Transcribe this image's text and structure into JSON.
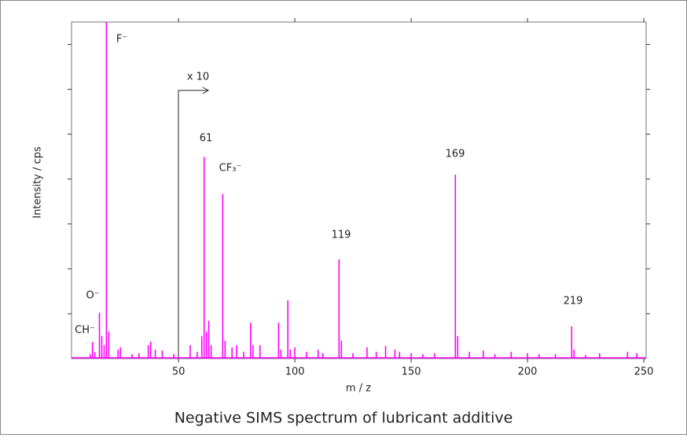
{
  "chart_data": {
    "type": "stem",
    "caption": "Negative SIMS spectrum of lubricant additive",
    "xlabel": "m / z",
    "ylabel": "Intensity / cps",
    "xlim": [
      4,
      251
    ],
    "xticks": [
      50,
      100,
      150,
      200,
      250
    ],
    "ylim": [
      0,
      7.5
    ],
    "yticks": [
      1,
      2,
      3,
      4,
      5,
      6,
      7
    ],
    "color": "#ff00ff",
    "annotations": [
      "F⁻",
      "O⁻",
      "CH⁻",
      "CF₃⁻",
      "61",
      "119",
      "169",
      "219",
      "x 10"
    ],
    "x": [
      12,
      13,
      14,
      16,
      17,
      18,
      19,
      20,
      24,
      25,
      30,
      33,
      37,
      38,
      40,
      43,
      48,
      55,
      58,
      60,
      61,
      62,
      63,
      64,
      69,
      70,
      73,
      75,
      78,
      81,
      82,
      85,
      93,
      94,
      97,
      98,
      100,
      105,
      110,
      112,
      119,
      120,
      125,
      131,
      135,
      139,
      143,
      145,
      150,
      155,
      160,
      169,
      170,
      175,
      181,
      186,
      193,
      200,
      205,
      212,
      219,
      220,
      225,
      231,
      243,
      247
    ],
    "values": [
      0.1,
      0.37,
      0.15,
      1.02,
      0.5,
      0.3,
      8,
      0.6,
      0.2,
      0.25,
      0.1,
      0.12,
      0.3,
      0.38,
      0.2,
      0.18,
      0.1,
      0.3,
      0.15,
      0.5,
      4.49,
      0.6,
      0.84,
      0.3,
      3.67,
      0.4,
      0.25,
      0.3,
      0.15,
      0.8,
      0.3,
      0.3,
      0.8,
      0.2,
      1.3,
      0.2,
      0.25,
      0.15,
      0.2,
      0.12,
      2.21,
      0.4,
      0.12,
      0.25,
      0.15,
      0.28,
      0.2,
      0.15,
      0.12,
      0.1,
      0.12,
      4.1,
      0.5,
      0.15,
      0.18,
      0.1,
      0.15,
      0.12,
      0.1,
      0.1,
      0.72,
      0.2,
      0.08,
      0.12,
      0.15,
      0.12
    ]
  }
}
